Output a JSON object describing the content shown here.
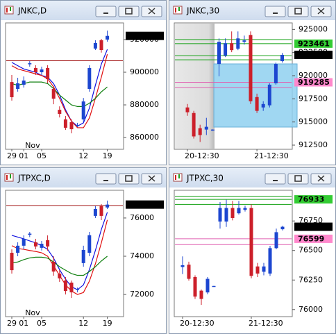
{
  "windows": [
    {
      "title": "JNKC,D",
      "chart": {
        "type": "candlestick",
        "up_color": "#1c46d0",
        "down_color": "#cc1f2a",
        "ylim": [
          852800,
          930200
        ],
        "yticks": [
          860000,
          880000,
          900000,
          920000
        ],
        "categories": [
          "29",
          null,
          "01",
          null,
          null,
          "05",
          null,
          null,
          null,
          null,
          null,
          null,
          "12",
          null,
          null,
          null,
          "19"
        ],
        "annotation": "Nov",
        "open": [
          894000,
          889800,
          892300,
          905200,
          902600,
          900000,
          902600,
          889800,
          877000,
          871100,
          869400,
          867600,
          871100,
          889800,
          914500,
          919600,
          920000
        ],
        "high": [
          898300,
          896600,
          897400,
          906800,
          904300,
          903400,
          904300,
          891400,
          879100,
          873200,
          871100,
          869000,
          884200,
          904300,
          919600,
          920400,
          925500
        ],
        "low": [
          882600,
          888100,
          890600,
          903400,
          898300,
          898300,
          893200,
          880400,
          872300,
          864700,
          862600,
          866400,
          869400,
          888100,
          913600,
          912000,
          918700
        ],
        "close": [
          884700,
          893200,
          894900,
          905500,
          900000,
          901700,
          895700,
          883800,
          874500,
          866000,
          865100,
          867700,
          882100,
          902600,
          917900,
          913600,
          922252
        ],
        "lines": [
          {
            "color": "#1010e0",
            "values": [
              906000,
              904000,
              902000,
              901000,
              900000,
              898000,
              897000,
              893000,
              886000,
              877000,
              870000,
              867000,
              869000,
              878000,
              892000,
              905000,
              914000
            ]
          },
          {
            "color": "#e01010",
            "values": [
              904000,
              902000,
              901000,
              900000,
              899000,
              898000,
              896000,
              891000,
              884000,
              876000,
              870000,
              866000,
              866000,
              872000,
              884000,
              897000,
              911000
            ]
          },
          {
            "color": "#108010",
            "values": [
              893000,
              892000,
              893000,
              894000,
              894000,
              894000,
              893000,
              890000,
              886000,
              883000,
              880000,
              879000,
              879000,
              881000,
              884000,
              888000,
              891000
            ]
          }
        ],
        "levels": [
          {
            "value": 907000,
            "color": "#a01010"
          }
        ],
        "price_tags": [
          {
            "value": 922252,
            "color": "#000000",
            "text_color": "#ffffff"
          }
        ]
      }
    },
    {
      "title": "JNKC,30",
      "chart": {
        "type": "candlestick",
        "up_color": "#1c46d0",
        "down_color": "#cc1f2a",
        "ylim": [
          912050,
          925700
        ],
        "yticks": [
          912500,
          915000,
          917500,
          920000,
          922500,
          925000
        ],
        "categories": [
          "20-12:30",
          null,
          null,
          null,
          null,
          null,
          null,
          null,
          null,
          null,
          null,
          "21-12:30",
          null,
          null,
          null,
          null
        ],
        "open": [
          916570,
          915970,
          914330,
          914180,
          914100,
          921270,
          922170,
          923510,
          922910,
          923660,
          924400,
          917690,
          916570,
          916800,
          919180,
          921570
        ],
        "high": [
          916940,
          916200,
          914700,
          915450,
          914200,
          924030,
          924030,
          924780,
          924780,
          924330,
          924780,
          918060,
          917240,
          919180,
          921420,
          922460
        ],
        "low": [
          915670,
          913210,
          912840,
          913590,
          914050,
          919930,
          922010,
          922540,
          922760,
          923360,
          916940,
          915970,
          916200,
          916570,
          919030,
          921420
        ],
        "close": [
          916050,
          913440,
          913590,
          914480,
          914180,
          923660,
          923510,
          922760,
          924030,
          923810,
          917240,
          916200,
          916940,
          919030,
          921270,
          922252
        ],
        "levels": [
          {
            "value": 923900,
            "color": "#10a010"
          },
          {
            "value": 923461,
            "color": "#10a010"
          },
          {
            "value": 922160,
            "color": "#10a010"
          },
          {
            "value": 921720,
            "color": "#10a010"
          },
          {
            "value": 919285,
            "color": "#e060b0"
          },
          {
            "value": 918700,
            "color": "#e060b0"
          }
        ],
        "price_tags": [
          {
            "value": 923461,
            "color": "#33cc33",
            "text_color": "#000000"
          },
          {
            "value": 922252,
            "color": "#000000",
            "text_color": "#ffffff"
          },
          {
            "value": 919285,
            "color": "#ff88cc",
            "text_color": "#000000"
          }
        ]
      }
    },
    {
      "title": "JTPXC,D",
      "chart": {
        "type": "candlestick",
        "up_color": "#1c46d0",
        "down_color": "#cc1f2a",
        "ylim": [
          70840,
          77450
        ],
        "yticks": [
          72000,
          74000,
          76000
        ],
        "categories": [
          "29",
          null,
          "01",
          null,
          null,
          "05",
          null,
          null,
          null,
          null,
          null,
          null,
          "12",
          null,
          null,
          null,
          "19"
        ],
        "annotation": "Nov",
        "open": [
          74180,
          74180,
          74550,
          75150,
          74730,
          74440,
          74840,
          73710,
          73090,
          72730,
          72620,
          72250,
          73640,
          74180,
          76110,
          76620,
          76550
        ],
        "high": [
          74360,
          74730,
          75090,
          75270,
          74910,
          74800,
          75090,
          74000,
          73270,
          72910,
          72730,
          72360,
          74550,
          75270,
          76620,
          76730,
          76910
        ],
        "low": [
          73090,
          74000,
          74360,
          75000,
          74360,
          74300,
          74290,
          72980,
          72660,
          72000,
          71820,
          72110,
          73450,
          74000,
          76000,
          75890,
          76470
        ],
        "close": [
          73270,
          74550,
          74910,
          75180,
          74510,
          74650,
          74510,
          73200,
          72840,
          72180,
          72110,
          72290,
          74330,
          75100,
          76470,
          76110,
          76701
        ],
        "lines": [
          {
            "color": "#1010e0",
            "values": [
              75090,
              75000,
              74910,
              74800,
              74700,
              74550,
              74360,
              73900,
              73300,
              72800,
              72400,
              72250,
              72500,
              73300,
              74300,
              75400,
              76300
            ]
          },
          {
            "color": "#e01010",
            "values": [
              74550,
              74400,
              74360,
              74300,
              74250,
              74180,
              74000,
              73500,
              73000,
              72500,
              72180,
              72000,
              72100,
              72700,
              73600,
              74700,
              75900
            ]
          },
          {
            "color": "#108010",
            "values": [
              73640,
              73700,
              73820,
              73910,
              73950,
              73950,
              73900,
              73700,
              73450,
              73270,
              73090,
              73000,
              73000,
              73200,
              73450,
              73750,
              74000
            ]
          }
        ],
        "levels": [
          {
            "value": 76650,
            "color": "#a01010"
          }
        ],
        "price_tags": [
          {
            "value": 76701,
            "color": "#000000",
            "text_color": "#ffffff"
          }
        ]
      }
    },
    {
      "title": "JTPXC,30",
      "chart": {
        "type": "candlestick",
        "up_color": "#1c46d0",
        "down_color": "#cc1f2a",
        "ylim": [
          75940,
          77010
        ],
        "yticks": [
          76000,
          76250,
          76500,
          76750
        ],
        "categories": [
          "20-12:30",
          null,
          null,
          null,
          null,
          null,
          null,
          null,
          null,
          null,
          null,
          "21-12:30",
          null,
          null,
          null,
          null,
          null
        ],
        "open": [
          76360,
          76380,
          76275,
          76160,
          76145,
          76195,
          76745,
          76745,
          76860,
          76815,
          76845,
          76860,
          76365,
          76320,
          76305,
          76520,
          76680
        ],
        "high": [
          76450,
          76405,
          76290,
          76170,
          76275,
          76200,
          76910,
          76930,
          76920,
          76920,
          76880,
          76890,
          76395,
          76395,
          76540,
          76685,
          76710
        ],
        "low": [
          76300,
          76245,
          76090,
          76040,
          76130,
          76195,
          76685,
          76700,
          76755,
          76805,
          76830,
          76265,
          76275,
          76290,
          76285,
          76510,
          76670
        ],
        "close": [
          76375,
          76260,
          76110,
          76090,
          76260,
          76200,
          76860,
          76860,
          76775,
          76860,
          76860,
          76285,
          76305,
          76365,
          76520,
          76655,
          76701
        ],
        "levels": [
          {
            "value": 76960,
            "color": "#10a010"
          },
          {
            "value": 76933,
            "color": "#10a010"
          },
          {
            "value": 76890,
            "color": "#10a010"
          },
          {
            "value": 76599,
            "color": "#e060b0"
          },
          {
            "value": 76550,
            "color": "#e060b0"
          }
        ],
        "price_tags": [
          {
            "value": 76933,
            "color": "#33cc33",
            "text_color": "#000000"
          },
          {
            "value": 76701,
            "color": "#000000",
            "text_color": "#ffffff"
          },
          {
            "value": 76599,
            "color": "#ff88cc",
            "text_color": "#000000"
          }
        ]
      }
    }
  ]
}
